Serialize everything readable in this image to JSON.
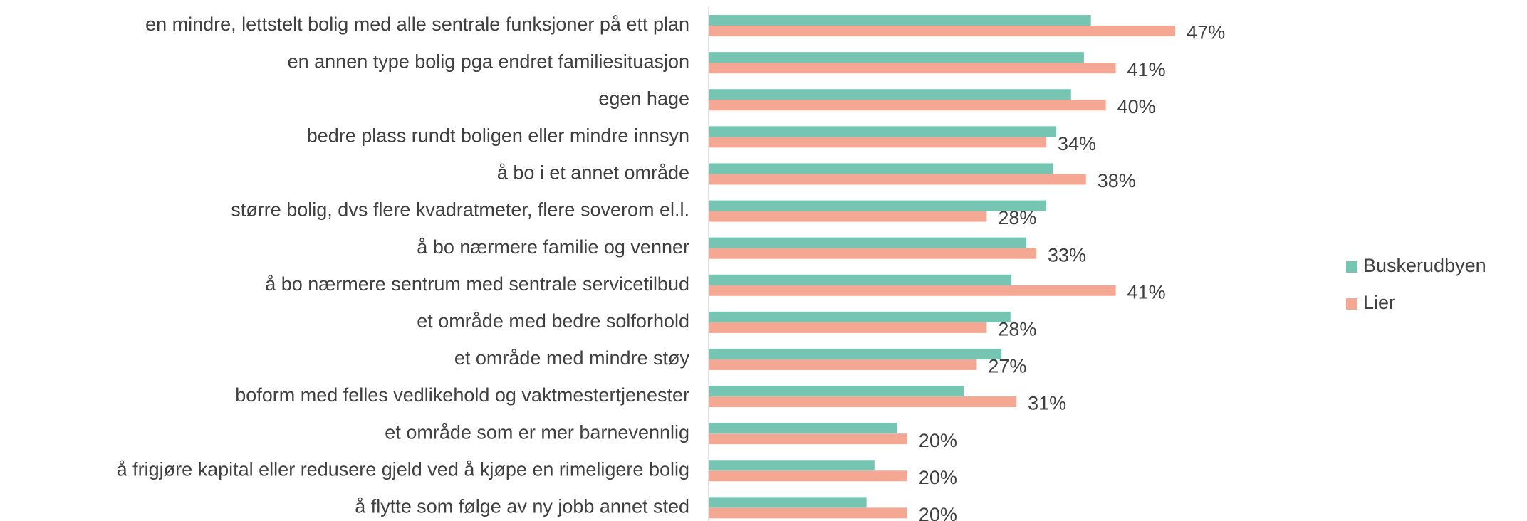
{
  "chart_data": {
    "type": "hbar",
    "categories": [
      "en mindre, lettstelt bolig med alle sentrale funksjoner på ett plan",
      "en annen type bolig pga endret familiesituasjon",
      "egen hage",
      "bedre plass rundt boligen eller mindre innsyn",
      "å bo i et annet område",
      "større bolig, dvs flere kvadratmeter, flere soverom el.l.",
      "å bo nærmere familie og venner",
      "å bo nærmere sentrum med sentrale servicetilbud",
      "et område med bedre solforhold",
      "et område med mindre støy",
      "boform med felles vedlikehold og vaktmestertjenester",
      "et område som er mer barnevennlig",
      "å frigjøre kapital eller redusere gjeld ved å kjøpe en rimeligere bolig",
      "å flytte som følge av ny jobb annet sted"
    ],
    "series": [
      {
        "name": "Buskerudbyen",
        "color": "#76c5b2",
        "values": [
          38.5,
          37.8,
          36.5,
          35,
          34.7,
          34,
          32,
          30.5,
          30.4,
          29.5,
          25.7,
          19,
          16.7,
          15.9
        ]
      },
      {
        "name": "Lier",
        "color": "#f4a893",
        "values": [
          47,
          41,
          40,
          34,
          38,
          28,
          33,
          41,
          28,
          27,
          31,
          20,
          20,
          20
        ],
        "value_labels": [
          "47%",
          "41%",
          "40%",
          "34%",
          "38%",
          "28%",
          "33%",
          "41%",
          "28%",
          "27%",
          "31%",
          "20%",
          "20%",
          "20%"
        ]
      }
    ],
    "xlim": [
      0,
      50
    ],
    "legend": "right"
  }
}
